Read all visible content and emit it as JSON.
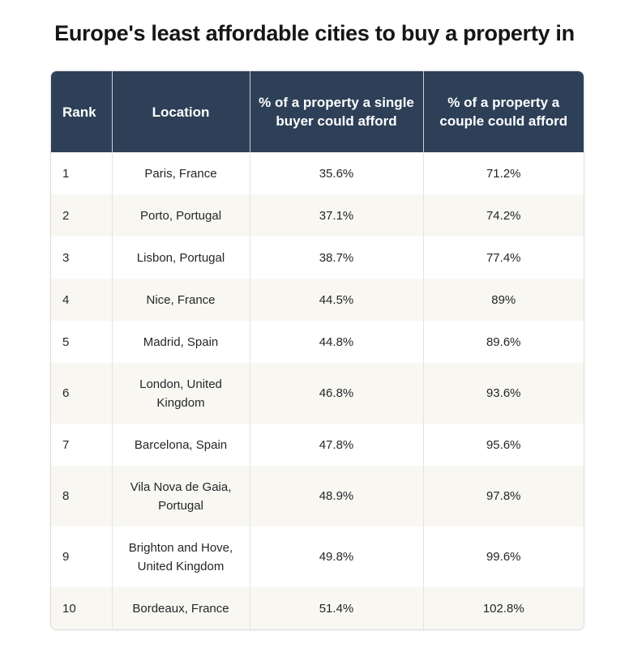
{
  "title": "Europe's least affordable cities to buy a property in",
  "colors": {
    "header_bg": "#2e4058",
    "header_text": "#ffffff",
    "stripe": "#f9f7f2"
  },
  "chart_data": {
    "type": "table",
    "title": "Europe's least affordable cities to buy a property in",
    "columns": [
      "Rank",
      "Location",
      "% of a property a single buyer could afford",
      "% of a property a couple could afford"
    ],
    "rows": [
      [
        "1",
        "Paris, France",
        "35.6%",
        "71.2%"
      ],
      [
        "2",
        "Porto, Portugal",
        "37.1%",
        "74.2%"
      ],
      [
        "3",
        "Lisbon, Portugal",
        "38.7%",
        "77.4%"
      ],
      [
        "4",
        "Nice, France",
        "44.5%",
        "89%"
      ],
      [
        "5",
        "Madrid, Spain",
        "44.8%",
        "89.6%"
      ],
      [
        "6",
        "London, United Kingdom",
        "46.8%",
        "93.6%"
      ],
      [
        "7",
        "Barcelona, Spain",
        "47.8%",
        "95.6%"
      ],
      [
        "8",
        "Vila Nova de Gaia, Portugal",
        "48.9%",
        "97.8%"
      ],
      [
        "9",
        "Brighton and Hove, United Kingdom",
        "49.8%",
        "99.6%"
      ],
      [
        "10",
        "Bordeaux, France",
        "51.4%",
        "102.8%"
      ]
    ]
  }
}
